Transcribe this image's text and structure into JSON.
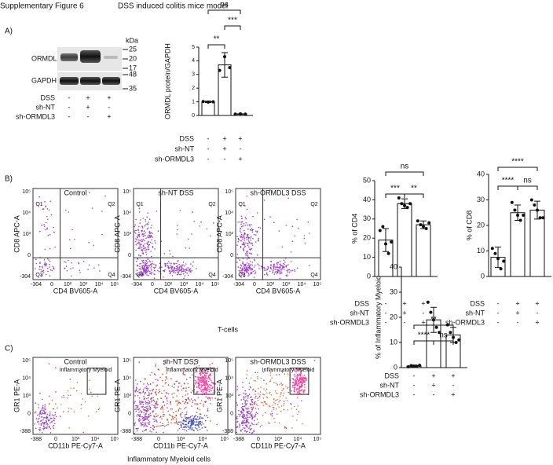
{
  "header": {
    "title": "Supplementary Figure 6",
    "subtitle": "DSS induced colitis mice model"
  },
  "panels": [
    "A)",
    "B)",
    "C)"
  ],
  "western_blot": {
    "bands": [
      "ORMDL",
      "GAPDH"
    ],
    "unit": "kDa",
    "markers": [
      "25",
      "20",
      "17",
      "48",
      "35"
    ],
    "conditions": [
      {
        "name": "DSS",
        "marks": [
          "-",
          "+",
          "+"
        ]
      },
      {
        "name": "sh-NT",
        "marks": [
          "-",
          "+",
          "-"
        ]
      },
      {
        "name": "sh-ORMDL3",
        "marks": [
          "-",
          "-",
          "+"
        ]
      }
    ]
  },
  "flow_b": {
    "plots": [
      "Control",
      "sh-NT DSS",
      "sh-ORMDL3 DSS"
    ],
    "y_label": "CD8 APC-A",
    "x_label": "CD4 BV605-A",
    "quadrants": [
      "Q1",
      "Q2",
      "Q3",
      "Q4"
    ],
    "y_ticks": [
      "10⁵",
      "10⁴",
      "10³",
      "0",
      "-304"
    ],
    "x_ticks": [
      "-304",
      "0",
      "10²",
      "10³",
      "10⁴",
      "10⁵"
    ],
    "caption": "T-cells"
  },
  "flow_c": {
    "plots": [
      "Control",
      "sh-NT DSS",
      "sh-ORMDL3 DSS"
    ],
    "y_label": "GR1 PE-A",
    "x_label": "CD11b PE-Cy7-A",
    "gate": "Inflammatory Myeloid",
    "y_ticks": [
      "10⁵",
      "10⁴",
      "10³",
      "0",
      "-388"
    ],
    "x_ticks": [
      "-388",
      "0",
      "10³",
      "10⁴",
      "10⁵"
    ],
    "caption": "Inflammatory Myeloid cells"
  },
  "chart_data": [
    {
      "type": "bar",
      "y_label": "ORMDL protein/GAPDH",
      "values": [
        1.0,
        3.7,
        0.1
      ],
      "errors": [
        0.05,
        0.9,
        0.02
      ],
      "points": [
        [
          1.02,
          0.98,
          1.0
        ],
        [
          3.3,
          4.3,
          3.5
        ],
        [
          0.1,
          0.12,
          0.1
        ]
      ],
      "ylim": [
        0,
        5
      ],
      "yticks": [
        0,
        1,
        2,
        3,
        4,
        5
      ],
      "significance": [
        "**",
        "***",
        "ns"
      ],
      "conditions": [
        {
          "name": "DSS",
          "marks": [
            "-",
            "+",
            "+"
          ]
        },
        {
          "name": "sh-NT",
          "marks": [
            "-",
            "+",
            "-"
          ]
        },
        {
          "name": "sh-ORMDL3",
          "marks": [
            "-",
            "-",
            "+"
          ]
        }
      ]
    },
    {
      "type": "bar",
      "y_label": "% of CD4",
      "values": [
        19,
        38,
        27
      ],
      "errors": [
        6,
        2.5,
        2
      ],
      "points": [
        [
          24,
          26,
          17,
          12,
          18
        ],
        [
          41,
          38,
          37,
          36,
          38
        ],
        [
          29,
          27,
          26,
          25,
          28
        ]
      ],
      "ylim": [
        0,
        50
      ],
      "yticks": [
        0,
        10,
        20,
        30,
        40,
        50
      ],
      "significance": [
        "***",
        "**",
        "ns"
      ],
      "conditions": [
        {
          "name": "DSS",
          "marks": [
            "-",
            "+",
            "+"
          ]
        },
        {
          "name": "sh-NT",
          "marks": [
            "-",
            "+",
            "-"
          ]
        },
        {
          "name": "sh-ORMDL3",
          "marks": [
            "-",
            "-",
            "+"
          ]
        }
      ]
    },
    {
      "type": "bar",
      "y_label": "% of CD8",
      "values": [
        7.5,
        25,
        26
      ],
      "errors": [
        4,
        3,
        3.5
      ],
      "points": [
        [
          11,
          9,
          7,
          3,
          6
        ],
        [
          29,
          26,
          24,
          22,
          24
        ],
        [
          30,
          28,
          26,
          23,
          23
        ]
      ],
      "ylim": [
        0,
        40
      ],
      "yticks": [
        0,
        10,
        20,
        30,
        40
      ],
      "significance": [
        "****",
        "ns",
        "****"
      ],
      "conditions": [
        {
          "name": "DSS",
          "marks": [
            "-",
            "+",
            "+"
          ]
        },
        {
          "name": "sh-NT",
          "marks": [
            "-",
            "+",
            "-"
          ]
        },
        {
          "name": "sh-ORMDL3",
          "marks": [
            "-",
            "-",
            "+"
          ]
        }
      ]
    },
    {
      "type": "bar",
      "y_label": "% of Inflammatory Myeloid",
      "values": [
        0.6,
        19,
        13
      ],
      "errors": [
        0.4,
        5,
        3
      ],
      "points": [
        [
          0.3,
          0.8,
          0.6,
          0.5,
          0.9
        ],
        [
          26,
          22,
          19,
          16,
          14
        ],
        [
          17,
          14,
          12,
          10,
          11
        ]
      ],
      "ylim": [
        0,
        40
      ],
      "yticks": [
        0,
        10,
        20,
        30,
        40
      ],
      "significance": [
        "****",
        "ns",
        "**"
      ],
      "conditions": [
        {
          "name": "DSS",
          "marks": [
            "-",
            "+",
            "+"
          ]
        },
        {
          "name": "sh-NT",
          "marks": [
            "-",
            "+",
            "-"
          ]
        },
        {
          "name": "sh-ORMDL3",
          "marks": [
            "-",
            "-",
            "+"
          ]
        }
      ]
    }
  ]
}
